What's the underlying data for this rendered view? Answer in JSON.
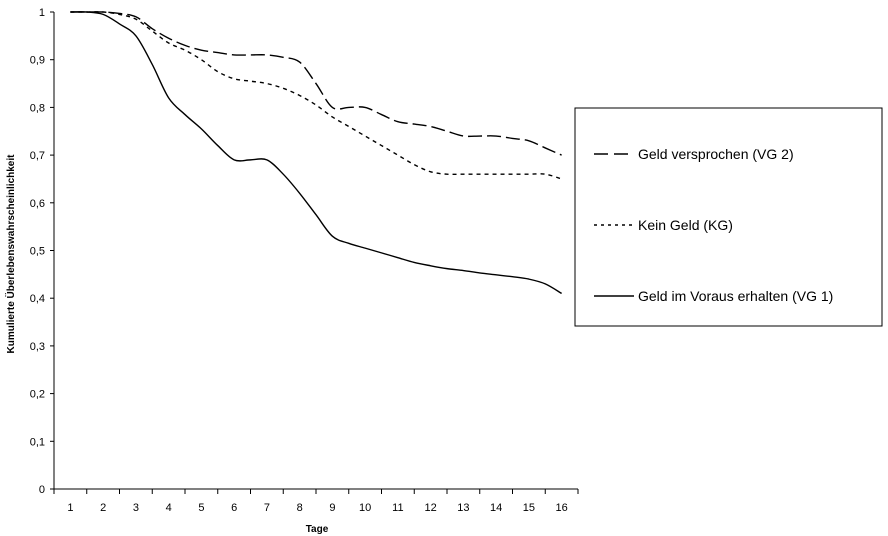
{
  "chart_data": {
    "type": "line",
    "title": "",
    "xlabel": "Tage",
    "ylabel": "Kumulierte Überlebenswahrscheinlichkeit",
    "x": [
      1,
      2,
      3,
      4,
      5,
      6,
      7,
      8,
      9,
      10,
      11,
      12,
      13,
      14,
      15,
      16
    ],
    "x_tick_labels": [
      "1",
      "2",
      "3",
      "4",
      "5",
      "6",
      "7",
      "8",
      "9",
      "10",
      "11",
      "12",
      "13",
      "14",
      "15",
      "16"
    ],
    "y_tick_labels": [
      "0",
      "0,1",
      "0,2",
      "0,3",
      "0,4",
      "0,5",
      "0,6",
      "0,7",
      "0,8",
      "0,9",
      "1"
    ],
    "ylim": [
      0,
      1
    ],
    "grid": false,
    "legend_position": "right",
    "series": [
      {
        "name": "Geld versprochen (VG 2)",
        "style": "dashed",
        "color": "#000000",
        "x": [
          1,
          1.5,
          2,
          2.5,
          3,
          3.5,
          4,
          4.5,
          5,
          5.5,
          6,
          6.5,
          7,
          7.5,
          8,
          8.5,
          9,
          9.5,
          10,
          10.5,
          11,
          11.5,
          12,
          12.5,
          13,
          13.5,
          14,
          14.5,
          15,
          15.5,
          16
        ],
        "values": [
          1,
          1,
          1,
          0.997,
          0.99,
          0.965,
          0.945,
          0.93,
          0.92,
          0.915,
          0.91,
          0.91,
          0.91,
          0.905,
          0.895,
          0.85,
          0.8,
          0.8,
          0.8,
          0.785,
          0.77,
          0.765,
          0.76,
          0.75,
          0.74,
          0.74,
          0.74,
          0.735,
          0.73,
          0.715,
          0.7
        ]
      },
      {
        "name": "Kein Geld (KG)",
        "style": "dotted",
        "color": "#000000",
        "x": [
          1,
          1.5,
          2,
          2.5,
          3,
          3.5,
          4,
          4.5,
          5,
          5.5,
          6,
          6.5,
          7,
          7.5,
          8,
          8.5,
          9,
          9.5,
          10,
          10.5,
          11,
          11.5,
          12,
          12.5,
          13,
          13.5,
          14,
          14.5,
          15,
          15.5,
          16
        ],
        "values": [
          1,
          1,
          1,
          0.995,
          0.985,
          0.96,
          0.935,
          0.92,
          0.9,
          0.875,
          0.86,
          0.855,
          0.85,
          0.84,
          0.825,
          0.805,
          0.78,
          0.76,
          0.74,
          0.72,
          0.7,
          0.68,
          0.665,
          0.66,
          0.66,
          0.66,
          0.66,
          0.66,
          0.66,
          0.66,
          0.65
        ]
      },
      {
        "name": "Geld im Voraus erhalten (VG 1)",
        "style": "solid",
        "color": "#000000",
        "x": [
          1,
          1.5,
          2,
          2.5,
          3,
          3.5,
          4,
          4.5,
          5,
          5.5,
          6,
          6.5,
          7,
          7.5,
          8,
          8.5,
          9,
          9.5,
          10,
          10.5,
          11,
          11.5,
          12,
          12.5,
          13,
          13.5,
          14,
          14.5,
          15,
          15.5,
          16
        ],
        "values": [
          1,
          1,
          0.995,
          0.975,
          0.95,
          0.89,
          0.82,
          0.785,
          0.755,
          0.72,
          0.69,
          0.69,
          0.69,
          0.66,
          0.62,
          0.575,
          0.53,
          0.515,
          0.505,
          0.495,
          0.485,
          0.475,
          0.468,
          0.462,
          0.458,
          0.453,
          0.449,
          0.445,
          0.44,
          0.43,
          0.41
        ]
      }
    ],
    "legend_order": [
      0,
      1,
      2
    ]
  }
}
